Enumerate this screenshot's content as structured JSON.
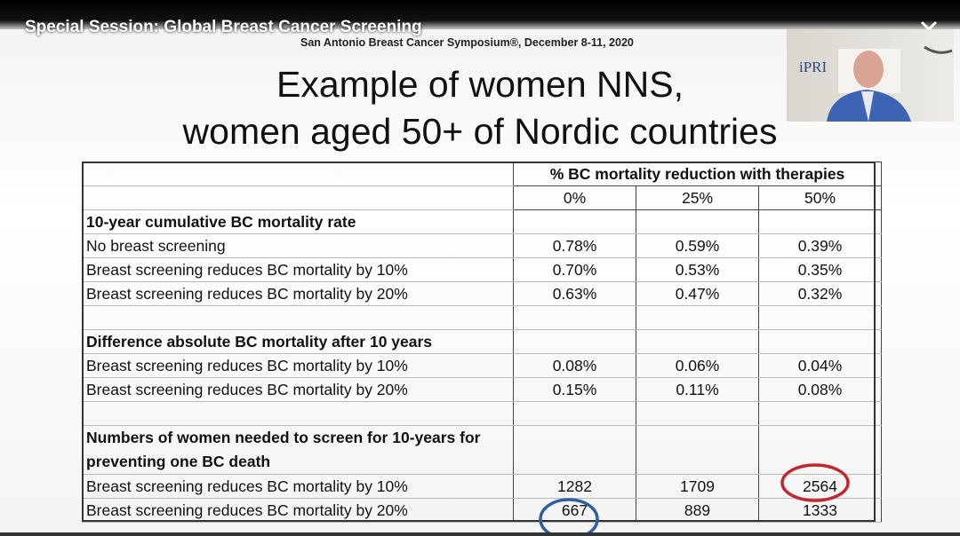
{
  "header": {
    "title": "Special Session: Global Breast Cancer Screening"
  },
  "slide": {
    "subtitle": "San Antonio Breast Cancer Symposium®, December 8-11, 2020",
    "title_lines": [
      "Example of women NNS,",
      "women aged 50+ of Nordic countries"
    ],
    "webcam_logo": "iPRI"
  },
  "table": {
    "column_group": "% BC mortality reduction with therapies",
    "columns": [
      "0%",
      "25%",
      "50%"
    ],
    "sections": [
      {
        "title": "10-year cumulative BC mortality rate",
        "rows": [
          {
            "label": "No breast screening",
            "values": [
              "0.78%",
              "0.59%",
              "0.39%"
            ]
          },
          {
            "label": "Breast screening reduces BC mortality by 10%",
            "values": [
              "0.70%",
              "0.53%",
              "0.35%"
            ]
          },
          {
            "label": "Breast screening reduces BC mortality by 20%",
            "values": [
              "0.63%",
              "0.47%",
              "0.32%"
            ]
          }
        ]
      },
      {
        "title": "Difference absolute BC mortality after 10 years",
        "rows": [
          {
            "label": "Breast screening reduces BC mortality by 10%",
            "values": [
              "0.08%",
              "0.06%",
              "0.04%"
            ]
          },
          {
            "label": "Breast screening reduces BC mortality by 20%",
            "values": [
              "0.15%",
              "0.11%",
              "0.08%"
            ]
          }
        ]
      },
      {
        "title": "Numbers of women needed to screen for 10-years for preventing one BC death",
        "rows": [
          {
            "label": "Breast screening reduces BC mortality by 10%",
            "values": [
              "1282",
              "1709",
              "2564"
            ]
          },
          {
            "label": "Breast screening reduces BC mortality by 20%",
            "values": [
              "667",
              "889",
              "1333"
            ]
          }
        ]
      }
    ]
  }
}
